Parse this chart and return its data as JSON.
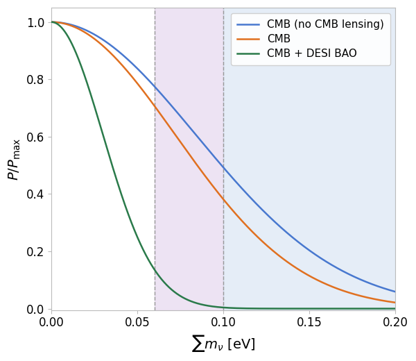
{
  "title": "",
  "xlabel": "$\\sum m_{\\nu}$ [eV]",
  "ylabel": "$P/P_{\\mathrm{max}}$",
  "xlim": [
    0.0,
    0.2
  ],
  "ylim": [
    -0.005,
    1.05
  ],
  "xticks": [
    0.0,
    0.05,
    0.1,
    0.15,
    0.2
  ],
  "yticks": [
    0.0,
    0.2,
    0.4,
    0.6,
    0.8,
    1.0
  ],
  "vline1": 0.06,
  "vline2": 0.1,
  "line_blue_color": "#4878cf",
  "line_orange_color": "#e07020",
  "line_green_color": "#2a7a4a",
  "shade_pink_color": "#dcc8e8",
  "shade_blue_color": "#ccddf0",
  "shade_pink_alpha": 0.5,
  "shade_blue_alpha": 0.5,
  "legend_labels": [
    "CMB (no CMB lensing)",
    "CMB",
    "CMB + DESI BAO"
  ],
  "blue_sigma": 0.084,
  "orange_sigma": 0.072,
  "green_sigma": 0.03
}
